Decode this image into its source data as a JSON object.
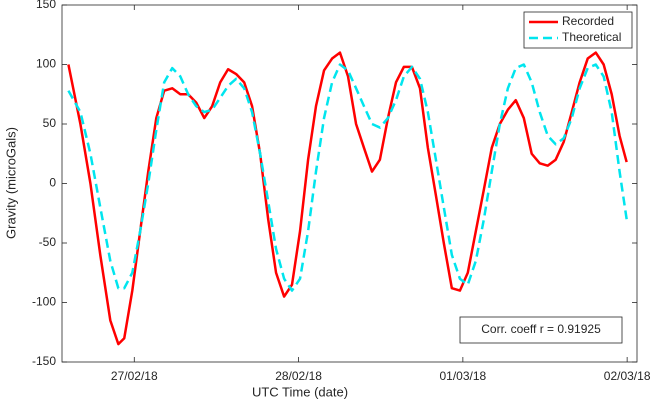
{
  "chart_data": {
    "type": "line",
    "x_label": "UTC Time (date)",
    "y_label": "Gravity (microGals)",
    "annotation": "Corr. coeff r = 0.91925",
    "legend": "top-right",
    "grid": false,
    "xlim": [
      0.56,
      4.06
    ],
    "xticks": [
      {
        "value": 1,
        "label": "27/02/18"
      },
      {
        "value": 2,
        "label": "28/02/18"
      },
      {
        "value": 3,
        "label": "01/03/18"
      },
      {
        "value": 4,
        "label": "02/03/18"
      }
    ],
    "ylim": [
      -150,
      150
    ],
    "yticks": [
      -150,
      -100,
      -50,
      0,
      50,
      100,
      150
    ],
    "x": [
      0.599,
      0.672,
      0.733,
      0.793,
      0.854,
      0.903,
      0.939,
      0.988,
      1.036,
      1.085,
      1.134,
      1.182,
      1.231,
      1.28,
      1.328,
      1.377,
      1.426,
      1.474,
      1.523,
      1.571,
      1.62,
      1.669,
      1.717,
      1.766,
      1.815,
      1.863,
      1.912,
      1.96,
      2.009,
      2.058,
      2.106,
      2.155,
      2.204,
      2.252,
      2.301,
      2.35,
      2.398,
      2.447,
      2.495,
      2.544,
      2.593,
      2.641,
      2.69,
      2.739,
      2.787,
      2.836,
      2.884,
      2.933,
      2.982,
      3.03,
      3.079,
      3.128,
      3.176,
      3.225,
      3.274,
      3.322,
      3.371,
      3.419,
      3.468,
      3.517,
      3.565,
      3.614,
      3.663,
      3.711,
      3.76,
      3.809,
      3.857,
      3.906,
      3.954,
      3.997
    ],
    "series": [
      {
        "name": "Recorded",
        "color": "#ff0000",
        "dash": false,
        "values": [
          100,
          50,
          0,
          -60,
          -115,
          -135,
          -130,
          -90,
          -40,
          10,
          55,
          78,
          80,
          75,
          75,
          68,
          55,
          65,
          85,
          96,
          92,
          85,
          65,
          25,
          -30,
          -75,
          -95,
          -85,
          -40,
          20,
          65,
          95,
          105,
          110,
          90,
          50,
          30,
          10,
          20,
          55,
          85,
          98,
          98,
          80,
          30,
          -10,
          -50,
          -88,
          -90,
          -75,
          -40,
          -5,
          30,
          50,
          62,
          70,
          55,
          25,
          17,
          15,
          20,
          35,
          60,
          85,
          105,
          110,
          100,
          75,
          40,
          18
        ]
      },
      {
        "name": "Theoretical",
        "color": "#00e5ee",
        "dash": true,
        "values": [
          78,
          60,
          25,
          -20,
          -65,
          -88,
          -88,
          -75,
          -40,
          0,
          45,
          85,
          97,
          90,
          75,
          65,
          60,
          62,
          72,
          82,
          88,
          80,
          60,
          25,
          -15,
          -55,
          -80,
          -90,
          -80,
          -40,
          10,
          55,
          85,
          100,
          95,
          80,
          65,
          50,
          47,
          55,
          70,
          90,
          98,
          88,
          60,
          20,
          -20,
          -60,
          -80,
          -85,
          -65,
          -30,
          10,
          50,
          80,
          97,
          100,
          85,
          60,
          40,
          33,
          38,
          55,
          80,
          97,
          100,
          90,
          60,
          10,
          -30
        ]
      }
    ]
  }
}
